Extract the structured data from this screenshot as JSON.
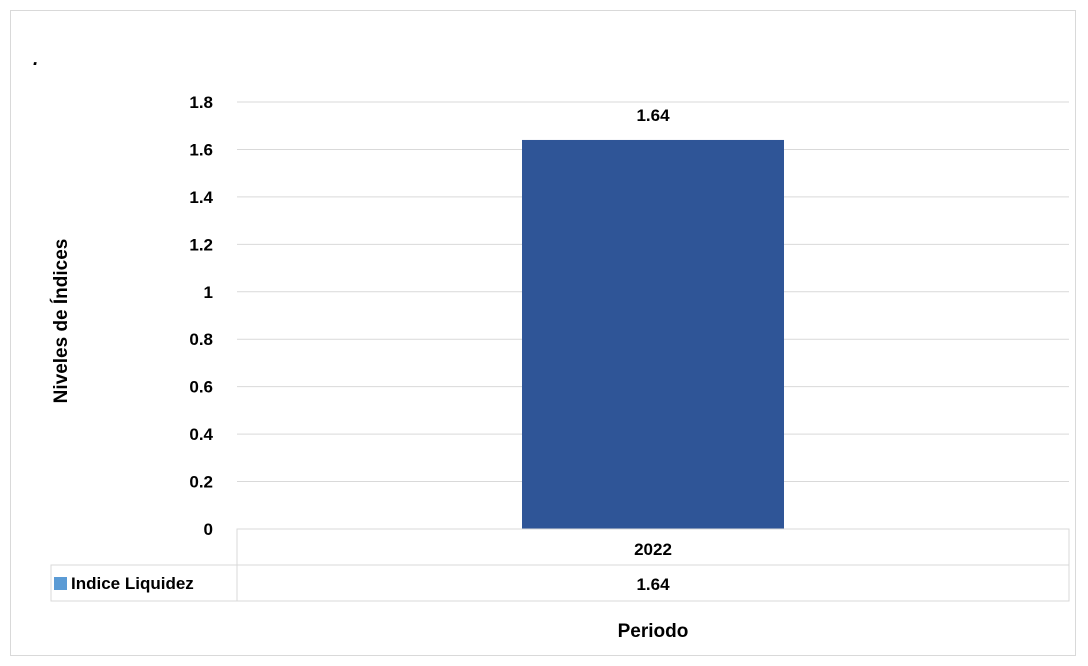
{
  "corner_mark": ".",
  "chart_data": {
    "type": "bar",
    "categories": [
      "2022"
    ],
    "series": [
      {
        "name": "Indice Liquidez",
        "values": [
          1.64
        ],
        "color": "#2f5597",
        "legend_key_color": "#5b9bd5"
      }
    ],
    "xlabel": "Periodo",
    "ylabel": "Niveles de Índices",
    "ylim": [
      0,
      1.8
    ],
    "yticks": [
      "0",
      "0.2",
      "0.4",
      "0.6",
      "0.8",
      "1",
      "1.2",
      "1.4",
      "1.6",
      "1.8"
    ],
    "data_labels": [
      "1.64"
    ],
    "data_table": {
      "header": [
        "2022"
      ],
      "rows": [
        {
          "label": "Indice Liquidez",
          "values": [
            "1.64"
          ]
        }
      ]
    },
    "grid": true,
    "legend": "data-table"
  }
}
